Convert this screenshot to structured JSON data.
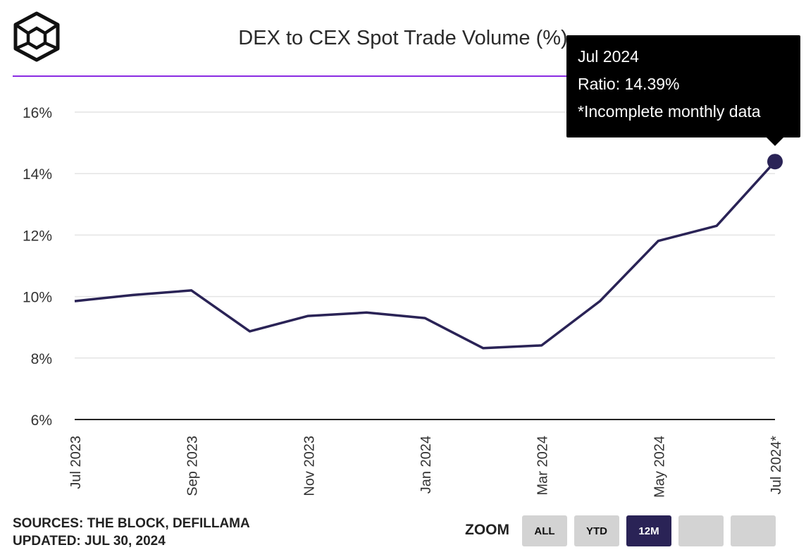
{
  "colors": {
    "accent": "#8a2be2",
    "line": "#2a2356",
    "grid": "#e4e4e4",
    "axis": "#222222",
    "button": "#d3d3d3",
    "button_active": "#2a2356"
  },
  "header": {
    "logo_icon": "cube-logo-icon"
  },
  "footer": {
    "sources": "SOURCES: THE BLOCK, DEFILLAMA",
    "updated": "UPDATED: JUL 30, 2024"
  },
  "zoom": {
    "label": "ZOOM",
    "buttons": [
      {
        "label": "ALL",
        "active": false
      },
      {
        "label": "YTD",
        "active": false
      },
      {
        "label": "12M",
        "active": true
      },
      {
        "label": "",
        "active": false
      },
      {
        "label": "",
        "active": false
      }
    ]
  },
  "tooltip": {
    "date": "Jul 2024",
    "ratio": "Ratio: 14.39%",
    "note": "*Incomplete monthly data"
  },
  "chart_data": {
    "type": "line",
    "title": "DEX to CEX Spot Trade Volume (%)",
    "xlabel": "",
    "ylabel": "",
    "x": [
      "Jul 2023",
      "Aug 2023",
      "Sep 2023",
      "Oct 2023",
      "Nov 2023",
      "Dec 2023",
      "Jan 2024",
      "Feb 2024",
      "Mar 2024",
      "Apr 2024",
      "May 2024",
      "Jun 2024",
      "Jul 2024*"
    ],
    "series": [
      {
        "values": [
          9.85,
          10.05,
          10.2,
          8.87,
          9.37,
          9.48,
          9.3,
          8.32,
          8.41,
          9.85,
          11.81,
          12.3,
          14.39
        ]
      }
    ],
    "x_tick_labels": [
      "Jul 2023",
      "Sep 2023",
      "Nov 2023",
      "Jan 2024",
      "Mar 2024",
      "May 2024",
      "Jul 2024*"
    ],
    "y_tick_labels": [
      "6%",
      "8%",
      "10%",
      "12%",
      "14%",
      "16%"
    ],
    "y_ticks": [
      6,
      8,
      10,
      12,
      14,
      16
    ],
    "ylim": [
      6,
      16.9
    ],
    "grid": true,
    "highlighted_point": "Jul 2024*"
  }
}
